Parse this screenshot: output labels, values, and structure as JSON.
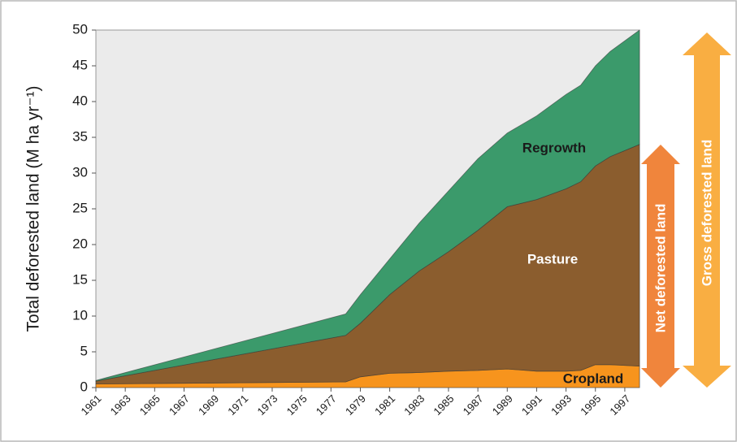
{
  "chart_data": {
    "type": "area",
    "stacked": true,
    "y_label": "Total deforested land (M ha yr⁻¹)",
    "x": [
      1961,
      1978,
      1979,
      1981,
      1983,
      1985,
      1987,
      1989,
      1991,
      1993,
      1994,
      1995,
      1996,
      1998
    ],
    "series": [
      {
        "name": "Cropland",
        "color": "#f7941d",
        "values": [
          0.5,
          0.8,
          1.5,
          2.0,
          2.1,
          2.3,
          2.4,
          2.6,
          2.3,
          2.3,
          2.4,
          3.2,
          3.2,
          3.0
        ]
      },
      {
        "name": "Pasture",
        "color": "#8b5d2e",
        "values": [
          0.4,
          6.5,
          7.5,
          11,
          14.2,
          16.7,
          19.6,
          22.7,
          24,
          25.5,
          26.4,
          27.8,
          29.1,
          31
        ]
      },
      {
        "name": "Regrowth",
        "color": "#3b9a6b",
        "values": [
          0.1,
          3,
          4,
          5,
          6.7,
          8.5,
          10,
          10.3,
          11.7,
          13.2,
          13.5,
          14,
          14.7,
          16
        ]
      }
    ],
    "annotations": [
      "Net deforested land",
      "Gross deforested land"
    ],
    "xlim": [
      1961,
      1998
    ],
    "xticks": [
      1961,
      1963,
      1965,
      1967,
      1969,
      1971,
      1973,
      1975,
      1977,
      1979,
      1981,
      1983,
      1985,
      1987,
      1989,
      1991,
      1993,
      1995,
      1997
    ],
    "ylim": [
      0,
      50
    ],
    "yticks": [
      0,
      5,
      10,
      15,
      20,
      25,
      30,
      35,
      40,
      45,
      50
    ]
  }
}
